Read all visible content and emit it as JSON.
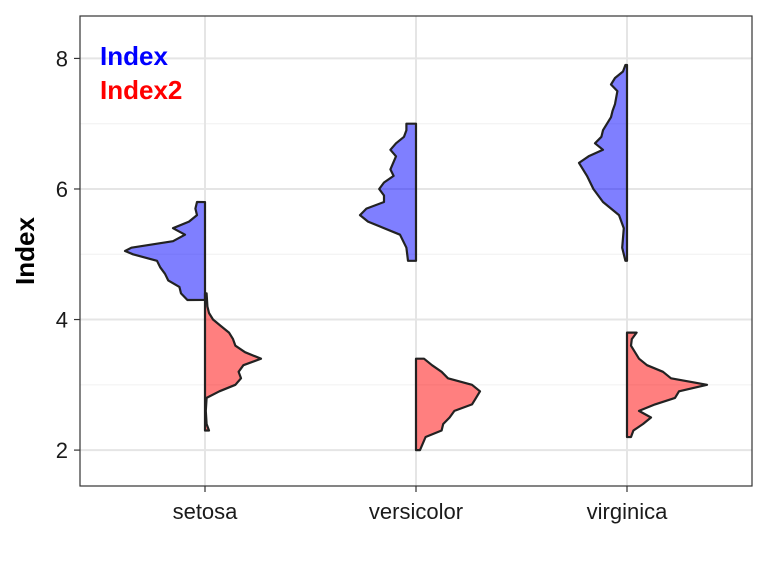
{
  "chart_data": {
    "type": "violin",
    "ylabel": "Index",
    "xlabel": "",
    "ylim": [
      1.45,
      8.65
    ],
    "yticks": [
      2,
      4,
      6,
      8
    ],
    "categories": [
      "setosa",
      "versicolor",
      "virginica"
    ],
    "grid": true,
    "legend_position": "top-left",
    "series": [
      {
        "name": "Index",
        "color": "#0000ff",
        "side": "left",
        "groups": [
          {
            "category": "setosa",
            "min": 4.3,
            "max": 5.8,
            "profile": [
              [
                4.3,
                0.22
              ],
              [
                4.4,
                0.3
              ],
              [
                4.5,
                0.32
              ],
              [
                4.6,
                0.46
              ],
              [
                4.7,
                0.5
              ],
              [
                4.8,
                0.56
              ],
              [
                4.9,
                0.6
              ],
              [
                5.0,
                0.9
              ],
              [
                5.05,
                1.0
              ],
              [
                5.1,
                0.92
              ],
              [
                5.2,
                0.4
              ],
              [
                5.3,
                0.25
              ],
              [
                5.4,
                0.4
              ],
              [
                5.5,
                0.2
              ],
              [
                5.6,
                0.1
              ],
              [
                5.7,
                0.12
              ],
              [
                5.8,
                0.1
              ]
            ]
          },
          {
            "category": "versicolor",
            "min": 4.9,
            "max": 7.0,
            "profile": [
              [
                4.9,
                0.1
              ],
              [
                5.1,
                0.12
              ],
              [
                5.3,
                0.2
              ],
              [
                5.5,
                0.6
              ],
              [
                5.6,
                0.7
              ],
              [
                5.7,
                0.62
              ],
              [
                5.8,
                0.4
              ],
              [
                5.9,
                0.4
              ],
              [
                6.0,
                0.46
              ],
              [
                6.1,
                0.4
              ],
              [
                6.2,
                0.28
              ],
              [
                6.3,
                0.32
              ],
              [
                6.5,
                0.25
              ],
              [
                6.6,
                0.32
              ],
              [
                6.7,
                0.25
              ],
              [
                6.8,
                0.15
              ],
              [
                6.9,
                0.12
              ],
              [
                7.0,
                0.12
              ]
            ]
          },
          {
            "category": "virginica",
            "min": 4.9,
            "max": 7.9,
            "profile": [
              [
                4.9,
                0.02
              ],
              [
                5.1,
                0.06
              ],
              [
                5.4,
                0.04
              ],
              [
                5.6,
                0.1
              ],
              [
                5.8,
                0.3
              ],
              [
                6.0,
                0.42
              ],
              [
                6.2,
                0.5
              ],
              [
                6.4,
                0.6
              ],
              [
                6.5,
                0.48
              ],
              [
                6.6,
                0.3
              ],
              [
                6.7,
                0.4
              ],
              [
                6.8,
                0.32
              ],
              [
                6.9,
                0.3
              ],
              [
                7.1,
                0.2
              ],
              [
                7.2,
                0.18
              ],
              [
                7.3,
                0.15
              ],
              [
                7.5,
                0.12
              ],
              [
                7.6,
                0.2
              ],
              [
                7.7,
                0.15
              ],
              [
                7.8,
                0.05
              ],
              [
                7.9,
                0.02
              ]
            ]
          }
        ]
      },
      {
        "name": "Index2",
        "color": "#ff0000",
        "side": "right",
        "groups": [
          {
            "category": "setosa",
            "min": 2.3,
            "max": 4.4,
            "profile": [
              [
                2.3,
                0.05
              ],
              [
                2.4,
                0.02
              ],
              [
                2.6,
                0.01
              ],
              [
                2.8,
                0.02
              ],
              [
                2.9,
                0.18
              ],
              [
                3.0,
                0.38
              ],
              [
                3.1,
                0.45
              ],
              [
                3.2,
                0.42
              ],
              [
                3.3,
                0.48
              ],
              [
                3.4,
                0.7
              ],
              [
                3.5,
                0.5
              ],
              [
                3.6,
                0.38
              ],
              [
                3.7,
                0.35
              ],
              [
                3.8,
                0.3
              ],
              [
                3.9,
                0.2
              ],
              [
                4.0,
                0.1
              ],
              [
                4.1,
                0.05
              ],
              [
                4.2,
                0.03
              ],
              [
                4.4,
                0.02
              ]
            ]
          },
          {
            "category": "versicolor",
            "min": 2.0,
            "max": 3.4,
            "profile": [
              [
                2.0,
                0.05
              ],
              [
                2.2,
                0.12
              ],
              [
                2.3,
                0.32
              ],
              [
                2.4,
                0.34
              ],
              [
                2.5,
                0.42
              ],
              [
                2.6,
                0.48
              ],
              [
                2.7,
                0.7
              ],
              [
                2.8,
                0.75
              ],
              [
                2.9,
                0.8
              ],
              [
                3.0,
                0.7
              ],
              [
                3.1,
                0.4
              ],
              [
                3.2,
                0.32
              ],
              [
                3.3,
                0.2
              ],
              [
                3.4,
                0.1
              ]
            ]
          },
          {
            "category": "virginica",
            "min": 2.2,
            "max": 3.8,
            "profile": [
              [
                2.2,
                0.05
              ],
              [
                2.3,
                0.08
              ],
              [
                2.4,
                0.2
              ],
              [
                2.5,
                0.3
              ],
              [
                2.6,
                0.15
              ],
              [
                2.7,
                0.35
              ],
              [
                2.8,
                0.6
              ],
              [
                2.9,
                0.65
              ],
              [
                3.0,
                1.0
              ],
              [
                3.1,
                0.55
              ],
              [
                3.2,
                0.45
              ],
              [
                3.3,
                0.25
              ],
              [
                3.4,
                0.15
              ],
              [
                3.6,
                0.05
              ],
              [
                3.7,
                0.06
              ],
              [
                3.8,
                0.12
              ]
            ]
          }
        ]
      }
    ]
  }
}
